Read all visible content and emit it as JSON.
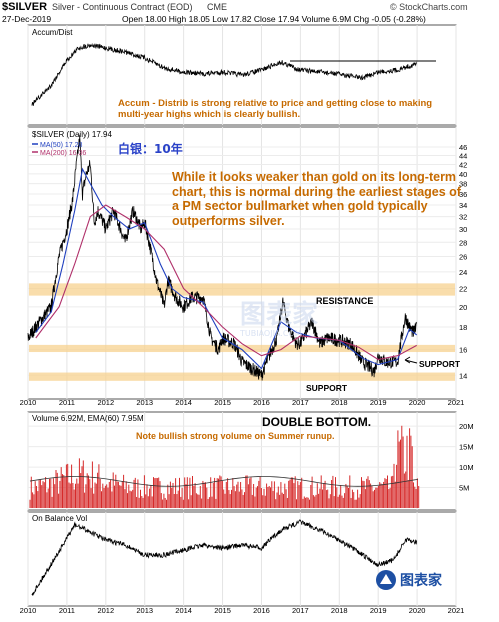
{
  "header": {
    "symbol": "$SILVER",
    "name": "Silver - Continuous Contract (EOD)",
    "exchange": "CME",
    "source": "© StockCharts.com",
    "date": "27-Dec-2019",
    "quote": "Open 18.00  High 18.05  Low 17.82  Close 17.94  Volume 6.9M  Chg -0.05 (-0.28%)"
  },
  "colors": {
    "price": "#000000",
    "ma50": "#1f3fbf",
    "ma200": "#b0306a",
    "annotation": "#c66a00",
    "title_cn": "#2a42c8",
    "band": "#f7d28f",
    "volume": "#d62a2a",
    "panel_border": "#555555"
  },
  "panels": {
    "accum": {
      "label": "Accum/Dist",
      "note": "Accum - Distrib is strong relative to price and getting close to making multi-year highs which is clearly bullish."
    },
    "price": {
      "label": "$SILVER (Daily) 17.94",
      "ma50": "MA(50) 17.28",
      "ma200": "MA(200) 16.36",
      "title_cn": "白银：10年",
      "note": "While it looks weaker than gold on its long-term chart, this is normal during the earliest stages of a PM sector bullmarket when gold typically outperforms silver.",
      "resistance_label": "RESISTANCE",
      "support_label": "SUPPORT",
      "support_label_2": "SUPPORT",
      "double_bottom": "DOUBLE BOTTOM."
    },
    "volume": {
      "label": "Volume 6.92M, EMA(60) 7.95M",
      "note": "Note bullish strong volume on Summer runup."
    },
    "obv": {
      "label": "On Balance Vol"
    }
  },
  "watermark": "图表家",
  "watermark_sub": "TUBIAOJIA.COM",
  "chart_data": {
    "type": "line",
    "x_ticks": [
      "2010",
      "2011",
      "2012",
      "2013",
      "2014",
      "2015",
      "2016",
      "2017",
      "2018",
      "2019",
      "2020",
      "2021"
    ],
    "y_ticks": [
      14,
      16,
      18,
      20,
      22,
      24,
      26,
      28,
      30,
      32,
      34,
      36,
      38,
      40,
      42,
      44,
      46
    ],
    "y_scale": "log",
    "ylim": [
      12.5,
      50
    ],
    "volume_ticks": [
      "20M",
      "15M",
      "10M",
      "5M"
    ],
    "series": [
      {
        "name": "$SILVER",
        "x": [
          2010.0,
          2010.3,
          2010.6,
          2010.8,
          2011.0,
          2011.15,
          2011.3,
          2011.33,
          2011.4,
          2011.5,
          2011.6,
          2011.7,
          2011.8,
          2012.0,
          2012.2,
          2012.5,
          2012.7,
          2012.9,
          2013.0,
          2013.3,
          2013.5,
          2013.6,
          2013.8,
          2014.0,
          2014.2,
          2014.5,
          2014.7,
          2014.9,
          2015.0,
          2015.3,
          2015.5,
          2015.9,
          2016.0,
          2016.2,
          2016.4,
          2016.55,
          2016.7,
          2016.9,
          2017.0,
          2017.3,
          2017.5,
          2017.7,
          2018.0,
          2018.3,
          2018.6,
          2018.9,
          2019.0,
          2019.2,
          2019.5,
          2019.7,
          2019.8,
          2019.9,
          2019.99
        ],
        "values": [
          17,
          18.5,
          20,
          26,
          30,
          35,
          46,
          48,
          36,
          40,
          42,
          31,
          33,
          30,
          33,
          28,
          33,
          30,
          31,
          23,
          20,
          23,
          21,
          20,
          21,
          21,
          17,
          16,
          17,
          16.5,
          15,
          14.2,
          14,
          15.5,
          17,
          20.5,
          18,
          16.5,
          16.5,
          18.5,
          16.5,
          17,
          16.8,
          16.5,
          15,
          14.3,
          15.5,
          15,
          15,
          19,
          18,
          17.5,
          17.94
        ]
      },
      {
        "name": "MA(50)",
        "x": [
          2010.2,
          2010.6,
          2010.9,
          2011.2,
          2011.4,
          2011.6,
          2011.9,
          2012.2,
          2012.6,
          2013.0,
          2013.4,
          2013.7,
          2014.0,
          2014.5,
          2015.0,
          2015.5,
          2016.0,
          2016.5,
          2016.9,
          2017.4,
          2018.0,
          2018.6,
          2019.0,
          2019.5,
          2019.8,
          2019.99
        ],
        "values": [
          17.5,
          19.5,
          25,
          33,
          41,
          38,
          34,
          32,
          30,
          31,
          25,
          22,
          21,
          20.5,
          17,
          16,
          14.5,
          18.5,
          17.5,
          17,
          16.8,
          15.3,
          14.8,
          15.2,
          17.8,
          17.28
        ]
      },
      {
        "name": "MA(200)",
        "x": [
          2010.2,
          2010.8,
          2011.2,
          2011.6,
          2012.0,
          2012.5,
          2013.0,
          2013.5,
          2014.0,
          2014.5,
          2015.0,
          2015.5,
          2016.0,
          2016.5,
          2017.0,
          2017.5,
          2018.0,
          2018.5,
          2019.0,
          2019.5,
          2019.99
        ],
        "values": [
          17,
          20,
          25,
          32,
          34,
          32,
          30,
          27,
          22,
          20,
          18,
          16.5,
          15.5,
          16,
          17.2,
          17,
          16.8,
          16.2,
          15.2,
          15.5,
          16.36
        ]
      }
    ]
  }
}
